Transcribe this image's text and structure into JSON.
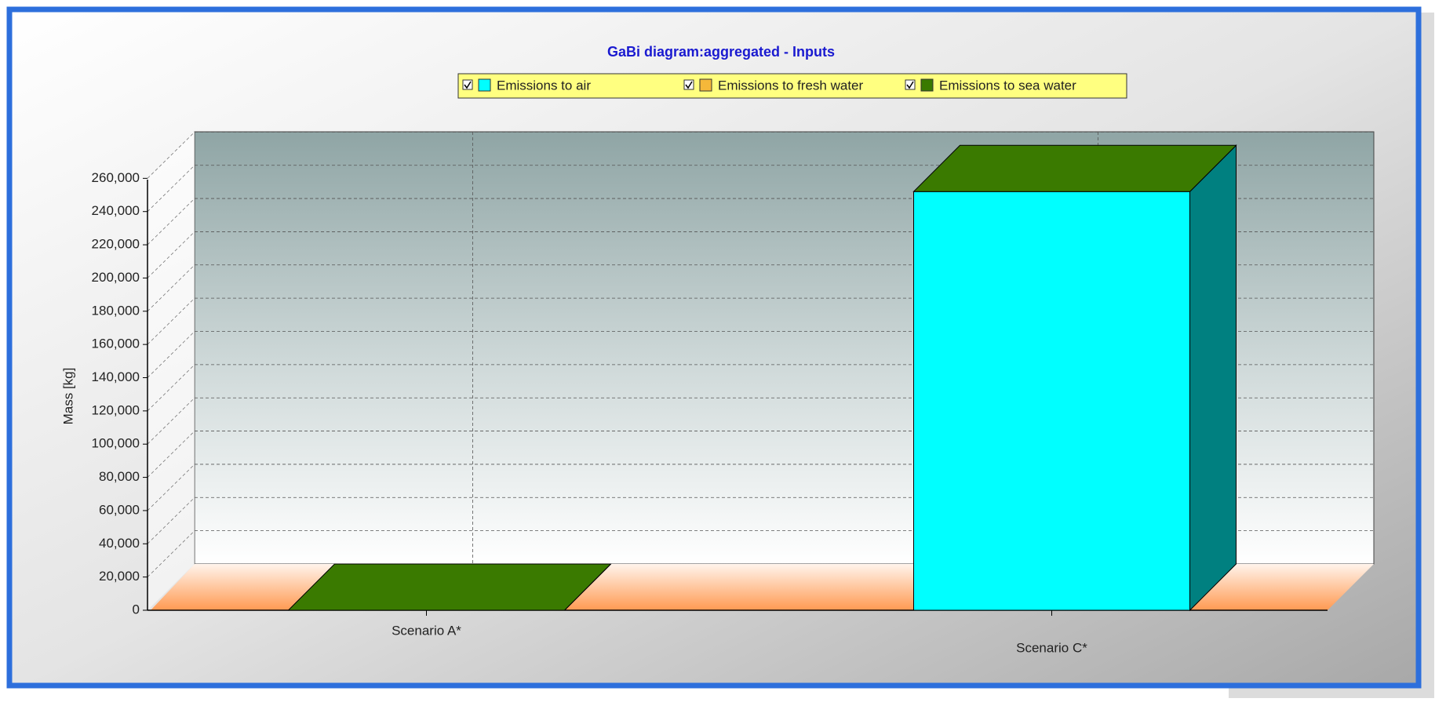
{
  "chart_data": {
    "type": "bar3d_stacked",
    "title": "GaBi diagram:aggregated - Inputs",
    "ylabel": "Mass [kg]",
    "categories": [
      "Scenario A*",
      "Scenario C*"
    ],
    "series": [
      {
        "name": "Emissions to air",
        "color": "#00ffff",
        "side_color": "#008080",
        "values": [
          0,
          252000
        ]
      },
      {
        "name": "Emissions to fresh water",
        "color": "#f5b83a",
        "side_color": "#a0701a",
        "values": [
          0,
          0
        ]
      },
      {
        "name": "Emissions to sea water",
        "color": "#3a7a00",
        "side_color": "#245000",
        "values": [
          0,
          0
        ]
      }
    ],
    "ylim": [
      0,
      280000
    ],
    "yticks": [
      0,
      {
        "value": 20000,
        "label": "20,000"
      },
      {
        "value": 40000,
        "label": "40,000"
      },
      {
        "value": 60000,
        "label": "60,000"
      },
      {
        "value": 80000,
        "label": "80,000"
      },
      {
        "value": 100000,
        "label": "100,000"
      },
      {
        "value": 120000,
        "label": "120,000"
      },
      {
        "value": 140000,
        "label": "140,000"
      },
      {
        "value": 160000,
        "label": "160,000"
      },
      {
        "value": 180000,
        "label": "180,000"
      },
      {
        "value": 200000,
        "label": "200,000"
      },
      {
        "value": 220000,
        "label": "220,000"
      },
      {
        "value": 240000,
        "label": "240,000"
      },
      {
        "value": 260000,
        "label": "260,000"
      }
    ],
    "grid": true,
    "legend": "top"
  }
}
